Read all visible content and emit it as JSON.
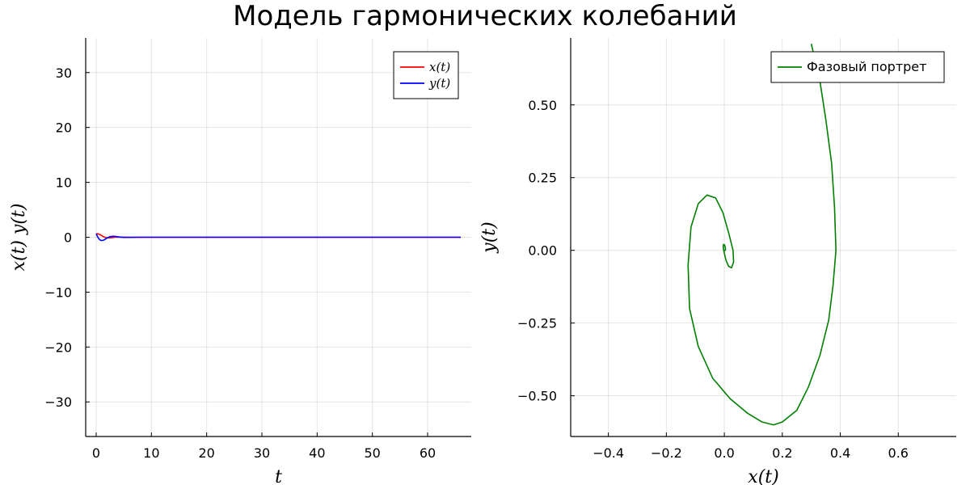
{
  "figure": {
    "title": "Модель гармонических колебаний"
  },
  "chart_data": [
    {
      "type": "line",
      "title": "",
      "xlabel": "t",
      "ylabel": "x(t) y(t)",
      "xlim": [
        -1.9,
        67.9
      ],
      "ylim": [
        -36.3,
        36.3
      ],
      "xticks": [
        0,
        10,
        20,
        30,
        40,
        50,
        60
      ],
      "yticks": [
        -30,
        -20,
        -10,
        0,
        10,
        20,
        30
      ],
      "grid": true,
      "legend_position": "top-right",
      "series": [
        {
          "name": "x(t)",
          "color": "#ff0000",
          "x": [
            0,
            0.2,
            0.4,
            0.6,
            0.8,
            1.0,
            1.2,
            1.4,
            1.6,
            1.8,
            2.0,
            2.3,
            2.6,
            3.0,
            3.5,
            4,
            5,
            6,
            8,
            10,
            15,
            20,
            30,
            40,
            50,
            60,
            66
          ],
          "values": [
            0.62,
            0.63,
            0.6,
            0.52,
            0.42,
            0.3,
            0.18,
            0.07,
            -0.02,
            -0.08,
            -0.11,
            -0.12,
            -0.09,
            -0.04,
            0.0,
            0.02,
            0.01,
            0.0,
            0.0,
            0.0,
            0.0,
            0.0,
            0.0,
            0.0,
            0.0,
            0.0,
            0.0
          ]
        },
        {
          "name": "y(t)",
          "color": "#0000ff",
          "x": [
            0,
            0.2,
            0.4,
            0.6,
            0.8,
            1.0,
            1.2,
            1.4,
            1.6,
            1.8,
            2.0,
            2.3,
            2.6,
            3.0,
            3.5,
            4,
            5,
            6,
            8,
            10,
            15,
            20,
            30,
            40,
            50,
            60,
            66
          ],
          "values": [
            0.65,
            0.2,
            -0.15,
            -0.4,
            -0.55,
            -0.6,
            -0.58,
            -0.5,
            -0.38,
            -0.25,
            -0.12,
            0.02,
            0.12,
            0.18,
            0.15,
            0.06,
            -0.03,
            -0.02,
            0.0,
            0.0,
            0.0,
            0.0,
            0.0,
            0.0,
            0.0,
            0.0,
            0.0
          ]
        }
      ]
    },
    {
      "type": "line",
      "title": "",
      "xlabel": "x(t)",
      "ylabel": "y(t)",
      "xlim": [
        -0.53,
        0.8
      ],
      "ylim": [
        -0.64,
        0.73
      ],
      "xticks": [
        -0.4,
        -0.2,
        0.0,
        0.2,
        0.4,
        0.6
      ],
      "xtick_labels": [
        "−0.4",
        "−0.2",
        "0.0",
        "0.2",
        "0.4",
        "0.6"
      ],
      "yticks": [
        -0.5,
        -0.25,
        0.0,
        0.25,
        0.5
      ],
      "ytick_labels": [
        "−0.50",
        "−0.25",
        "0.00",
        "0.25",
        "0.50"
      ],
      "grid": true,
      "legend_position": "top-right",
      "series": [
        {
          "name": "Фазовый портрет",
          "color": "#008000",
          "points": [
            [
              0.3,
              0.71
            ],
            [
              0.33,
              0.58
            ],
            [
              0.35,
              0.45
            ],
            [
              0.37,
              0.3
            ],
            [
              0.38,
              0.15
            ],
            [
              0.385,
              0.0
            ],
            [
              0.375,
              -0.12
            ],
            [
              0.36,
              -0.24
            ],
            [
              0.33,
              -0.36
            ],
            [
              0.29,
              -0.47
            ],
            [
              0.25,
              -0.55
            ],
            [
              0.2,
              -0.59
            ],
            [
              0.17,
              -0.6
            ],
            [
              0.13,
              -0.59
            ],
            [
              0.08,
              -0.56
            ],
            [
              0.02,
              -0.51
            ],
            [
              -0.04,
              -0.44
            ],
            [
              -0.09,
              -0.33
            ],
            [
              -0.12,
              -0.2
            ],
            [
              -0.125,
              -0.05
            ],
            [
              -0.115,
              0.08
            ],
            [
              -0.09,
              0.16
            ],
            [
              -0.06,
              0.19
            ],
            [
              -0.03,
              0.18
            ],
            [
              -0.005,
              0.13
            ],
            [
              0.015,
              0.06
            ],
            [
              0.03,
              0.0
            ],
            [
              0.032,
              -0.04
            ],
            [
              0.025,
              -0.06
            ],
            [
              0.015,
              -0.055
            ],
            [
              0.006,
              -0.035
            ],
            [
              0.0,
              -0.01
            ],
            [
              -0.004,
              0.01
            ],
            [
              -0.003,
              0.02
            ],
            [
              0.0,
              0.02
            ],
            [
              0.003,
              0.012
            ],
            [
              0.004,
              0.004
            ],
            [
              0.003,
              0.0
            ],
            [
              0.001,
              -0.001
            ],
            [
              0.0,
              0.0
            ]
          ]
        }
      ]
    }
  ]
}
